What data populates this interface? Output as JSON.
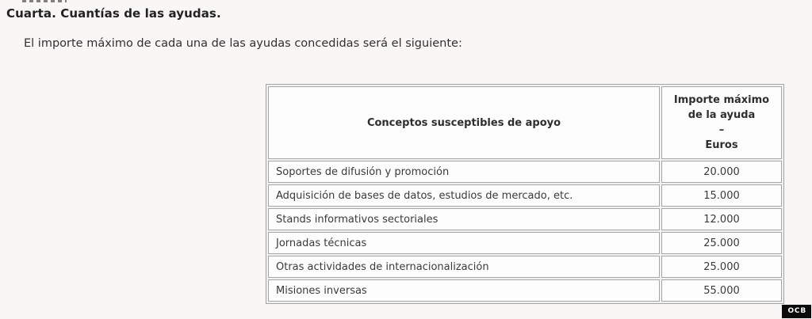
{
  "document": {
    "title": "Cuarta. Cuantías de las ayudas.",
    "intro": "El importe máximo de cada una de las ayudas concedidas será el siguiente:"
  },
  "table": {
    "header": {
      "concept": "Conceptos susceptibles de apoyo",
      "amount_lines": [
        "Importe máximo",
        "de la ayuda",
        "–",
        "Euros"
      ]
    },
    "rows": [
      {
        "concept": "Soportes de difusión y promoción",
        "amount": "20.000"
      },
      {
        "concept": "Adquisición de bases de datos, estudios de mercado, etc.",
        "amount": "15.000"
      },
      {
        "concept": "Stands informativos sectoriales",
        "amount": "12.000"
      },
      {
        "concept": "Jornadas técnicas",
        "amount": "25.000"
      },
      {
        "concept": "Otras actividades de internacionalización",
        "amount": "25.000"
      },
      {
        "concept": "Misiones inversas",
        "amount": "55.000"
      }
    ]
  },
  "watermark": {
    "label": "OCB"
  },
  "colors": {
    "page_background": "#f8f7f6",
    "cell_background": "#fdfdfd",
    "table_border": "#a6a6a6",
    "text": "#333333",
    "watermark_background": "#0a0a0a",
    "watermark_text": "#ffffff"
  }
}
